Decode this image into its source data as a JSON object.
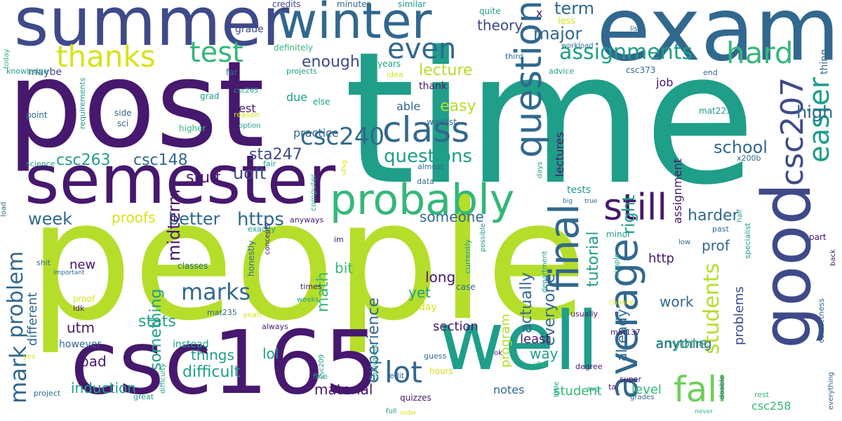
{
  "palette": {
    "dark_purple": "#46186e",
    "purple": "#482475",
    "indigo": "#3e4a89",
    "blue": "#31688e",
    "teal_blue": "#26828e",
    "teal": "#1f9e89",
    "green": "#35b779",
    "light_green": "#6ece58",
    "lime": "#b5de2b",
    "yellow": "#d8e219"
  },
  "words": [
    {
      "text": "time",
      "color": "teal"
    },
    {
      "text": "people",
      "color": "lime"
    },
    {
      "text": "post",
      "color": "dark_purple"
    },
    {
      "text": "exam",
      "color": "blue"
    },
    {
      "text": "summer",
      "color": "indigo"
    },
    {
      "text": "good",
      "color": "indigo"
    },
    {
      "text": "csc165",
      "color": "dark_purple"
    },
    {
      "text": "well",
      "color": "teal"
    },
    {
      "text": "semester",
      "color": "dark_purple"
    },
    {
      "text": "winter",
      "color": "blue"
    },
    {
      "text": "probably",
      "color": "green"
    },
    {
      "text": "question",
      "color": "blue"
    },
    {
      "text": "class",
      "color": "blue"
    },
    {
      "text": "final",
      "color": "blue"
    },
    {
      "text": "still",
      "color": "dark_purple"
    },
    {
      "text": "average",
      "color": "blue"
    },
    {
      "text": "csc207",
      "color": "indigo"
    },
    {
      "text": "easier",
      "color": "teal"
    },
    {
      "text": "fall",
      "color": "light_green"
    },
    {
      "text": "thanks",
      "color": "yellow"
    },
    {
      "text": "test",
      "color": "green"
    },
    {
      "text": "even",
      "color": "blue"
    },
    {
      "text": "hard",
      "color": "green"
    },
    {
      "text": "assignments",
      "color": "teal"
    },
    {
      "text": "lot",
      "color": "blue"
    },
    {
      "text": "marks",
      "color": "blue"
    },
    {
      "text": "mark",
      "color": "blue"
    },
    {
      "text": "problem",
      "color": "blue"
    },
    {
      "text": "students",
      "color": "lime"
    },
    {
      "text": "csc240",
      "color": "blue"
    },
    {
      "text": "term",
      "color": "blue"
    },
    {
      "text": "high",
      "color": "blue"
    },
    {
      "text": "major",
      "color": "blue"
    },
    {
      "text": "theory",
      "color": "indigo"
    },
    {
      "text": "lecture",
      "color": "lime"
    },
    {
      "text": "enough",
      "color": "indigo"
    },
    {
      "text": "easy",
      "color": "lime"
    },
    {
      "text": "questions",
      "color": "teal"
    },
    {
      "text": "https",
      "color": "blue"
    },
    {
      "text": "better",
      "color": "blue"
    },
    {
      "text": "week",
      "color": "blue"
    },
    {
      "text": "school",
      "color": "blue"
    },
    {
      "text": "uoft",
      "color": "indigo"
    },
    {
      "text": "midterm",
      "color": "dark_purple"
    },
    {
      "text": "csc263",
      "color": "teal"
    },
    {
      "text": "csc148",
      "color": "blue"
    },
    {
      "text": "sta247",
      "color": "indigo"
    },
    {
      "text": "stuff",
      "color": "dark_purple"
    },
    {
      "text": "right",
      "color": "teal"
    },
    {
      "text": "tutorial",
      "color": "teal"
    },
    {
      "text": "harder",
      "color": "blue"
    },
    {
      "text": "experience",
      "color": "blue"
    },
    {
      "text": "program",
      "color": "lime"
    },
    {
      "text": "actually",
      "color": "blue"
    },
    {
      "text": "everyone",
      "color": "blue"
    },
    {
      "text": "something",
      "color": "teal"
    },
    {
      "text": "math",
      "color": "green"
    },
    {
      "text": "stats",
      "color": "teal"
    },
    {
      "text": "difficult",
      "color": "teal"
    },
    {
      "text": "induction",
      "color": "teal"
    },
    {
      "text": "material",
      "color": "dark_purple"
    },
    {
      "text": "proofs",
      "color": "yellow"
    },
    {
      "text": "someone",
      "color": "blue"
    },
    {
      "text": "different",
      "color": "blue"
    },
    {
      "text": "utm",
      "color": "dark_purple"
    },
    {
      "text": "new",
      "color": "dark_purple"
    },
    {
      "text": "bad",
      "color": "dark_purple"
    },
    {
      "text": "things",
      "color": "teal"
    },
    {
      "text": "lol",
      "color": "teal"
    },
    {
      "text": "long",
      "color": "dark_purple"
    },
    {
      "text": "yet",
      "color": "teal"
    },
    {
      "text": "bit",
      "color": "green"
    },
    {
      "text": "work",
      "color": "blue"
    },
    {
      "text": "anyone",
      "color": "green"
    },
    {
      "text": "anything",
      "color": "blue"
    },
    {
      "text": "way",
      "color": "teal"
    },
    {
      "text": "least",
      "color": "dark_purple"
    },
    {
      "text": "section",
      "color": "dark_purple"
    },
    {
      "text": "http",
      "color": "dark_purple"
    },
    {
      "text": "prof",
      "color": "blue"
    },
    {
      "text": "problems",
      "color": "indigo"
    },
    {
      "text": "already",
      "color": "blue"
    },
    {
      "text": "tests",
      "color": "teal"
    },
    {
      "text": "level",
      "color": "green"
    },
    {
      "text": "student",
      "color": "green"
    },
    {
      "text": "notes",
      "color": "blue"
    },
    {
      "text": "csc258",
      "color": "green"
    },
    {
      "text": "assignment",
      "color": "dark_purple"
    },
    {
      "text": "job",
      "color": "dark_purple"
    },
    {
      "text": "lectures",
      "color": "dark_purple"
    },
    {
      "text": "best",
      "color": "dark_purple"
    },
    {
      "text": "due",
      "color": "teal"
    },
    {
      "text": "able",
      "color": "blue"
    },
    {
      "text": "practice",
      "color": "blue"
    },
    {
      "text": "thank",
      "color": "dark_purple"
    },
    {
      "text": "maybe",
      "color": "indigo"
    },
    {
      "text": "grade",
      "color": "indigo"
    },
    {
      "text": "credits",
      "color": "indigo"
    },
    {
      "text": "minutes",
      "color": "blue"
    },
    {
      "text": "similar",
      "color": "teal"
    },
    {
      "text": "quite",
      "color": "teal"
    },
    {
      "text": "less",
      "color": "yellow"
    },
    {
      "text": "x",
      "color": "dark_purple"
    },
    {
      "text": "list",
      "color": "blue"
    },
    {
      "text": "workload",
      "color": "blue"
    },
    {
      "text": "third",
      "color": "blue"
    },
    {
      "text": "thing",
      "color": "blue"
    },
    {
      "text": "definitely",
      "color": "green"
    },
    {
      "text": "today",
      "color": "green"
    },
    {
      "text": "knowledge",
      "color": "teal"
    },
    {
      "text": "years",
      "color": "teal"
    },
    {
      "text": "idea",
      "color": "yellow"
    },
    {
      "text": "advice",
      "color": "teal"
    },
    {
      "text": "csc373",
      "color": "blue"
    },
    {
      "text": "end",
      "color": "blue"
    },
    {
      "text": "projects",
      "color": "teal"
    },
    {
      "text": "far",
      "color": "blue"
    },
    {
      "text": "csc265",
      "color": "teal"
    },
    {
      "text": "grad",
      "color": "teal"
    },
    {
      "text": "else",
      "color": "teal"
    },
    {
      "text": "reason",
      "color": "yellow"
    },
    {
      "text": "option",
      "color": "teal"
    },
    {
      "text": "waitlist",
      "color": "blue"
    },
    {
      "text": "mat223",
      "color": "teal"
    },
    {
      "text": "point",
      "color": "blue"
    },
    {
      "text": "side",
      "color": "blue"
    },
    {
      "text": "sci",
      "color": "blue"
    },
    {
      "text": "higher",
      "color": "green"
    },
    {
      "text": "requirements",
      "color": "teal"
    },
    {
      "text": "science",
      "color": "teal"
    },
    {
      "text": "fair",
      "color": "teal"
    },
    {
      "text": "utsg",
      "color": "yellow"
    },
    {
      "text": "almost",
      "color": "blue"
    },
    {
      "text": "data",
      "color": "blue"
    },
    {
      "text": "computer",
      "color": "green"
    },
    {
      "text": "x200b",
      "color": "blue"
    },
    {
      "text": "days",
      "color": "teal"
    },
    {
      "text": "extremely",
      "color": "teal"
    },
    {
      "text": "big",
      "color": "blue"
    },
    {
      "text": "true",
      "color": "blue"
    },
    {
      "text": "half",
      "color": "teal"
    },
    {
      "text": "past",
      "color": "blue"
    },
    {
      "text": "part",
      "color": "dark_purple"
    },
    {
      "text": "minor",
      "color": "teal"
    },
    {
      "text": "low",
      "color": "blue"
    },
    {
      "text": "specialist",
      "color": "teal"
    },
    {
      "text": "back",
      "color": "dark_purple"
    },
    {
      "text": "load",
      "color": "blue"
    },
    {
      "text": "anyways",
      "color": "dark_purple"
    },
    {
      "text": "exactly",
      "color": "teal"
    },
    {
      "text": "im",
      "color": "dark_purple"
    },
    {
      "text": "currently",
      "color": "teal"
    },
    {
      "text": "possible",
      "color": "teal"
    },
    {
      "text": "simple",
      "color": "teal"
    },
    {
      "text": "shit",
      "color": "blue"
    },
    {
      "text": "important",
      "color": "blue"
    },
    {
      "text": "classes",
      "color": "blue"
    },
    {
      "text": "honestly",
      "color": "blue"
    },
    {
      "text": "concepts",
      "color": "dark_purple"
    },
    {
      "text": "times",
      "color": "dark_purple"
    },
    {
      "text": "weeks",
      "color": "teal"
    },
    {
      "text": "proof",
      "color": "yellow"
    },
    {
      "text": "idk",
      "color": "dark_purple"
    },
    {
      "text": "mat235",
      "color": "blue"
    },
    {
      "text": "yeah",
      "color": "yellow"
    },
    {
      "text": "always",
      "color": "dark_purple"
    },
    {
      "text": "department",
      "color": "teal"
    },
    {
      "text": "usually",
      "color": "dark_purple"
    },
    {
      "text": "mat137",
      "color": "dark_purple"
    },
    {
      "text": "chance",
      "color": "yellow"
    },
    {
      "text": "correctness",
      "color": "blue"
    },
    {
      "text": "however",
      "color": "blue"
    },
    {
      "text": "instead",
      "color": "teal"
    },
    {
      "text": "day",
      "color": "yellow"
    },
    {
      "text": "case",
      "color": "blue"
    },
    {
      "text": "yes",
      "color": "yellow"
    },
    {
      "text": "difficulty",
      "color": "teal"
    },
    {
      "text": "csc209",
      "color": "teal"
    },
    {
      "text": "equivalent",
      "color": "teal"
    },
    {
      "text": "guess",
      "color": "blue"
    },
    {
      "text": "ok",
      "color": "dark_purple"
    },
    {
      "text": "hours",
      "color": "yellow"
    },
    {
      "text": "utsc",
      "color": "green"
    },
    {
      "text": "little",
      "color": "teal"
    },
    {
      "text": "degree",
      "color": "dark_purple"
    },
    {
      "text": "super",
      "color": "dark_purple"
    },
    {
      "text": "doable",
      "color": "blue"
    },
    {
      "text": "rest",
      "color": "green"
    },
    {
      "text": "everything",
      "color": "blue"
    },
    {
      "text": "project",
      "color": "blue"
    },
    {
      "text": "great",
      "color": "teal"
    },
    {
      "text": "fine",
      "color": "teal"
    },
    {
      "text": "edit",
      "color": "blue"
    },
    {
      "text": "avg",
      "color": "teal"
    },
    {
      "text": "ta",
      "color": "dark_purple"
    },
    {
      "text": "grades",
      "color": "blue"
    },
    {
      "text": "quizzes",
      "color": "dark_purple"
    },
    {
      "text": "full",
      "color": "teal"
    },
    {
      "text": "order",
      "color": "yellow"
    },
    {
      "text": "never",
      "color": "green"
    }
  ]
}
